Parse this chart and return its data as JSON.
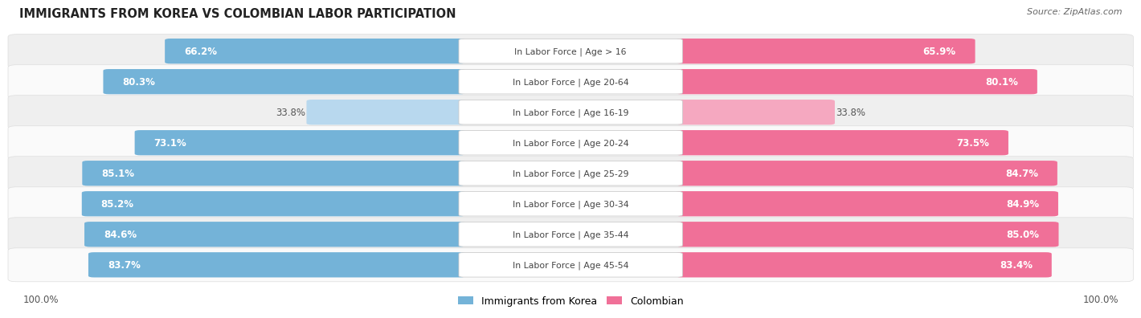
{
  "title": "IMMIGRANTS FROM KOREA VS COLOMBIAN LABOR PARTICIPATION",
  "source": "Source: ZipAtlas.com",
  "categories": [
    "In Labor Force | Age > 16",
    "In Labor Force | Age 20-64",
    "In Labor Force | Age 16-19",
    "In Labor Force | Age 20-24",
    "In Labor Force | Age 25-29",
    "In Labor Force | Age 30-34",
    "In Labor Force | Age 35-44",
    "In Labor Force | Age 45-54"
  ],
  "korea_values": [
    66.2,
    80.3,
    33.8,
    73.1,
    85.1,
    85.2,
    84.6,
    83.7
  ],
  "colombian_values": [
    65.9,
    80.1,
    33.8,
    73.5,
    84.7,
    84.9,
    85.0,
    83.4
  ],
  "korea_color": "#74B3D8",
  "korea_color_light": "#B8D8EE",
  "colombian_color": "#F07098",
  "colombian_color_light": "#F5A8C0",
  "row_bg_colors": [
    "#EFEFEF",
    "#FAFAFA"
  ],
  "max_value": 100.0,
  "legend_korea": "Immigrants from Korea",
  "legend_colombian": "Colombian",
  "bottom_left_label": "100.0%",
  "bottom_right_label": "100.0%",
  "fig_width": 14.06,
  "fig_height": 3.95,
  "dpi": 100
}
